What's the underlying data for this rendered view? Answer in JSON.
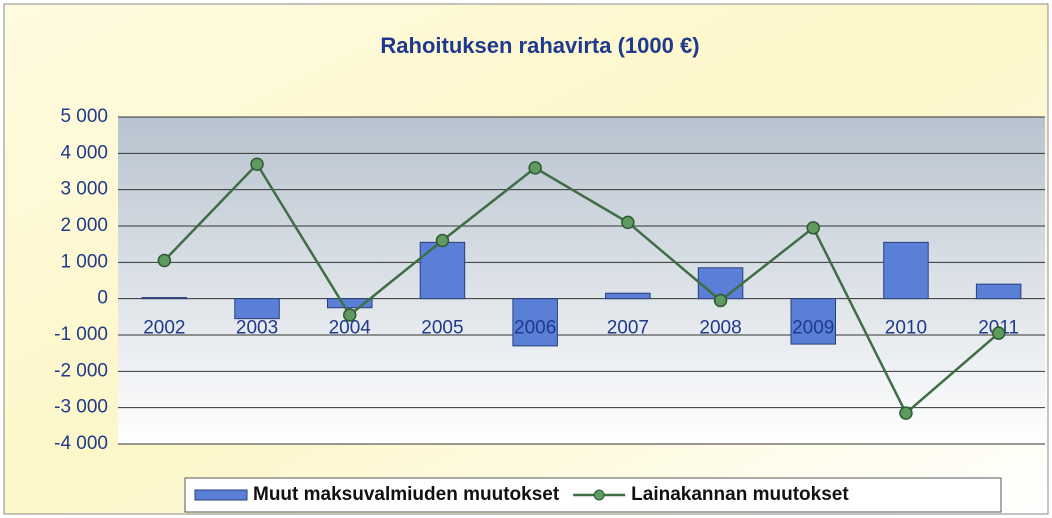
{
  "chart_data": {
    "type": "bar",
    "title": "Rahoituksen rahavirta (1000 €)",
    "categories": [
      "2002",
      "2003",
      "2004",
      "2005",
      "2006",
      "2007",
      "2008",
      "2009",
      "2010",
      "2011"
    ],
    "series": [
      {
        "name": "Muut maksuvalmiuden muutokset",
        "type": "bar",
        "color": "#5a7fd6",
        "values": [
          30,
          -550,
          -250,
          1550,
          -1300,
          150,
          850,
          -1250,
          1550,
          400
        ]
      },
      {
        "name": "Lainakannan muutokset",
        "type": "line",
        "color": "#3f6e45",
        "values": [
          1050,
          3700,
          -450,
          1600,
          3600,
          2100,
          -50,
          1950,
          -3150,
          -950
        ]
      }
    ],
    "ylim": [
      -4000,
      5000
    ],
    "yticks": [
      {
        "value": -4000,
        "label": "-4 000"
      },
      {
        "value": -3000,
        "label": "-3 000"
      },
      {
        "value": -2000,
        "label": "-2 000"
      },
      {
        "value": -1000,
        "label": "-1 000"
      },
      0,
      {
        "value": 1000,
        "label": "1 000"
      },
      {
        "value": 2000,
        "label": "2 000"
      },
      {
        "value": 3000,
        "label": "3 000"
      },
      {
        "value": 4000,
        "label": "4 000"
      },
      {
        "value": 5000,
        "label": "5 000"
      }
    ],
    "grid": true,
    "legend": "bottom"
  }
}
